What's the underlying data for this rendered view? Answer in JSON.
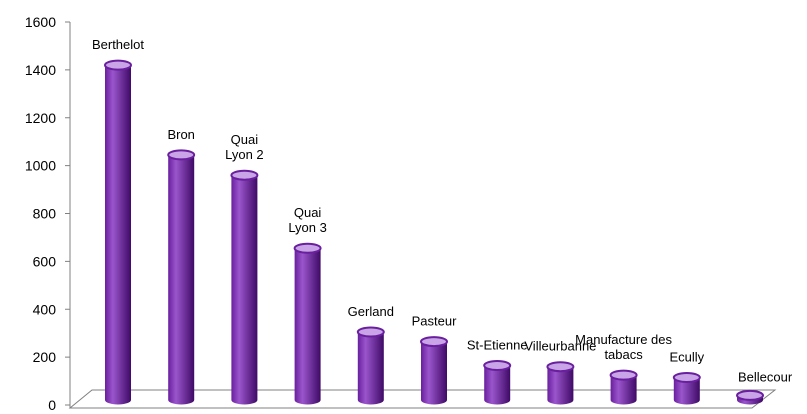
{
  "chart_data": {
    "type": "bar",
    "style": "3d-cylinder",
    "categories": [
      "Berthelot",
      "Bron",
      "Quai Lyon 2",
      "Quai Lyon 3",
      "Gerland",
      "Pasteur",
      "St-Etienne",
      "Villeurbanne",
      "Manufacture des tabacs",
      "Ecully",
      "Bellecour"
    ],
    "data_labels": [
      [
        "Berthelot"
      ],
      [
        "Bron"
      ],
      [
        "Quai",
        "Lyon 2"
      ],
      [
        "Quai",
        "Lyon 3"
      ],
      [
        "Gerland"
      ],
      [
        "Pasteur"
      ],
      [
        "St-Etienne"
      ],
      [
        "Villeurbanne"
      ],
      [
        "Manufacture des",
        "tabacs"
      ],
      [
        "Ecully"
      ],
      [
        "Bellecour"
      ]
    ],
    "values": [
      1420,
      1045,
      960,
      655,
      305,
      265,
      165,
      160,
      125,
      115,
      40
    ],
    "ylim": [
      0,
      1600
    ],
    "yticks": [
      "0",
      "200",
      "400",
      "600",
      "800",
      "1000",
      "1200",
      "1400",
      "1600"
    ],
    "title": "",
    "xlabel": "",
    "ylabel": "",
    "grid": false,
    "legend": "none",
    "colors": {
      "bar": "#6a1f9e",
      "bar_highlight": "#9a55cc",
      "bar_dark": "#3f0a66",
      "bar_top": "#c9a4e6",
      "axis": "#808080"
    }
  }
}
